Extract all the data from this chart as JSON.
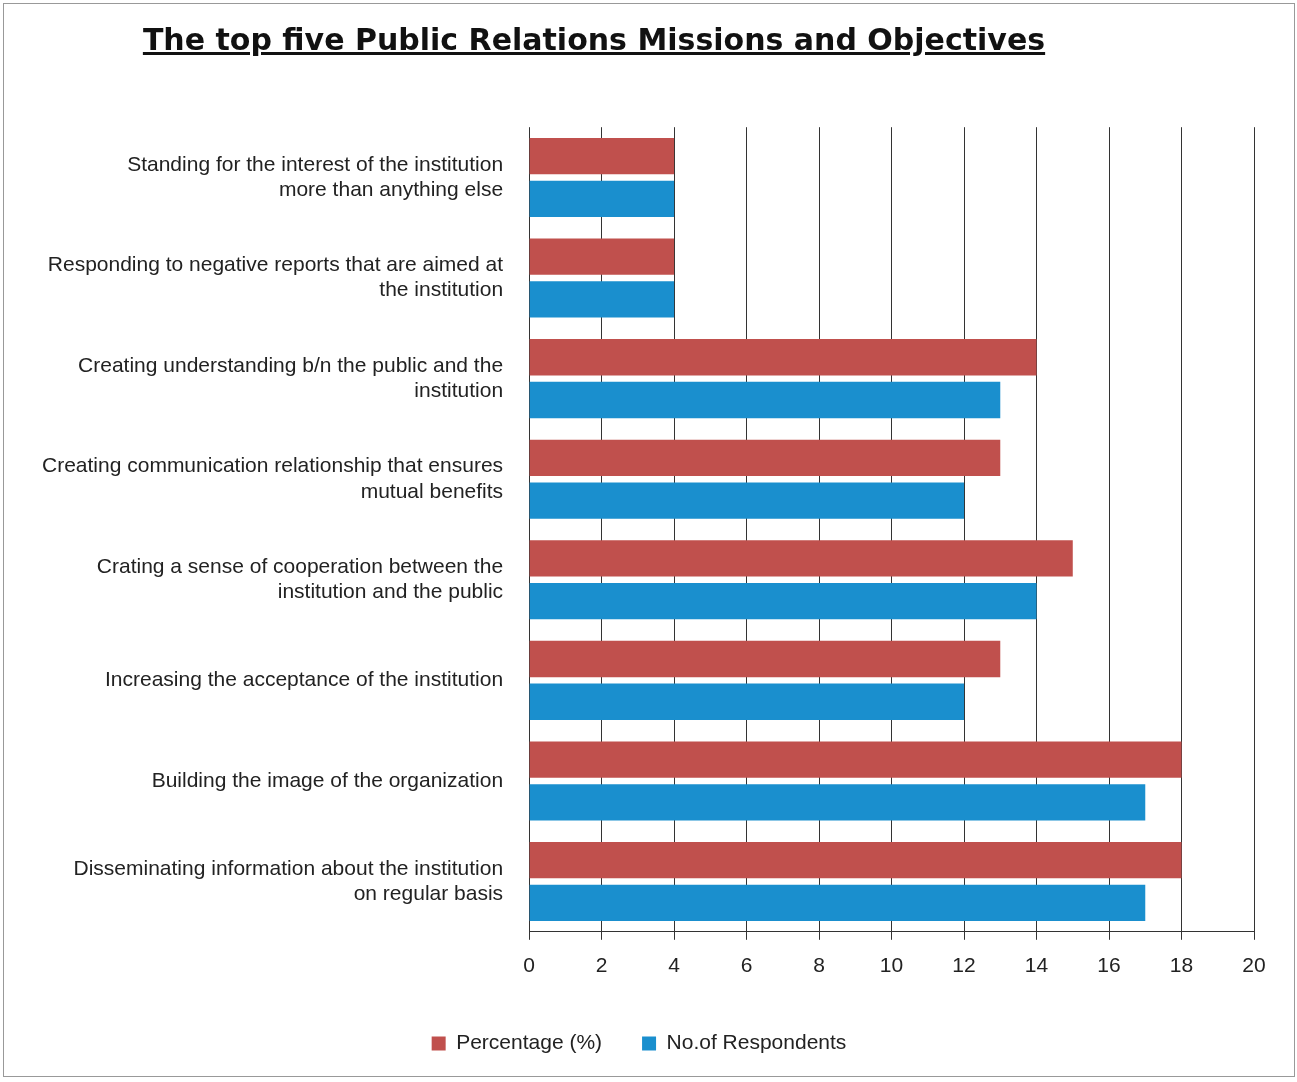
{
  "chart_data": {
    "type": "bar",
    "orientation": "horizontal",
    "title": "The top five Public Relations Missions and Objectives",
    "categories": [
      "Standing for the interest of the institution more than anything else",
      "Responding to negative reports that are aimed at the institution",
      "Creating understanding b/n the public and the institution",
      "Creating communication relationship that ensures mutual benefits",
      "Crating a sense of cooperation between the institution and the public",
      "Increasing the acceptance of the institution",
      "Building the image of the organization",
      "Disseminating information about the institution on regular basis"
    ],
    "series": [
      {
        "name": "Percentage (%)",
        "color": "#c0504d",
        "values": [
          4,
          4,
          14,
          13,
          15,
          13,
          18,
          18
        ]
      },
      {
        "name": "No.of Respondents",
        "color": "#1a8fce",
        "values": [
          4,
          4,
          13,
          12,
          14,
          12,
          17,
          17
        ]
      }
    ],
    "xlim": [
      0,
      20
    ],
    "xticks": [
      0,
      2,
      4,
      6,
      8,
      10,
      12,
      14,
      16,
      18,
      20
    ],
    "grid": "x",
    "legend": "bottom"
  }
}
